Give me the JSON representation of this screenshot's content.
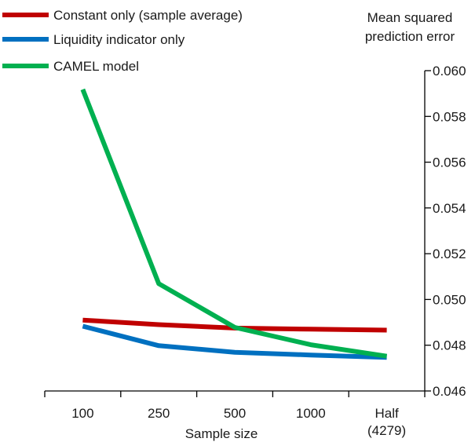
{
  "chart_data": {
    "type": "line",
    "xlabel": "Sample size",
    "ylabel": "Mean squared prediction error",
    "ylabel_lines": [
      "Mean squared",
      "prediction error"
    ],
    "categories": [
      "100",
      "250",
      "500",
      "1000",
      "Half (4279)"
    ],
    "category_lines": [
      [
        "100"
      ],
      [
        "250"
      ],
      [
        "500"
      ],
      [
        "1000"
      ],
      [
        "Half",
        "(4279)"
      ]
    ],
    "ylim": [
      0.046,
      0.06
    ],
    "y_ticks": [
      "0.046",
      "0.048",
      "0.050",
      "0.052",
      "0.054",
      "0.056",
      "0.058",
      "0.060"
    ],
    "grid": false,
    "y_axis_position": "right",
    "legend_position": "top-left",
    "series": [
      {
        "name": "Constant only (sample average)",
        "color": "#c00000",
        "values": [
          0.0491,
          0.0489,
          0.04875,
          0.0487,
          0.04866
        ]
      },
      {
        "name": "Liquidity indicator only",
        "color": "#0070c0",
        "values": [
          0.04883,
          0.04798,
          0.04769,
          0.04757,
          0.04747
        ]
      },
      {
        "name": "CAMEL model",
        "color": "#00b050",
        "values": [
          0.05918,
          0.05069,
          0.04878,
          0.04802,
          0.04752
        ]
      }
    ]
  }
}
